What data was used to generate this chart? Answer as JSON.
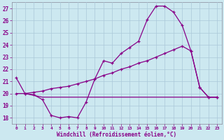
{
  "xlabel": "Windchill (Refroidissement éolien,°C)",
  "background_color": "#cce8f0",
  "grid_color": "#aac8d8",
  "line_color": "#880088",
  "xlim": [
    -0.5,
    23.5
  ],
  "ylim": [
    17.5,
    27.5
  ],
  "yticks": [
    18,
    19,
    20,
    21,
    22,
    23,
    24,
    25,
    26,
    27
  ],
  "xticks": [
    0,
    1,
    2,
    3,
    4,
    5,
    6,
    7,
    8,
    9,
    10,
    11,
    12,
    13,
    14,
    15,
    16,
    17,
    18,
    19,
    20,
    21,
    22,
    23
  ],
  "curve1_x": [
    0,
    1,
    2,
    3,
    4,
    5,
    6,
    7,
    8,
    9,
    10,
    11,
    12,
    13,
    14,
    15,
    16,
    17,
    18,
    19,
    20,
    21,
    22,
    23
  ],
  "curve1_y": [
    21.3,
    20.0,
    19.9,
    19.5,
    18.2,
    18.0,
    18.1,
    18.0,
    19.3,
    21.2,
    22.7,
    22.5,
    23.3,
    23.8,
    24.3,
    26.1,
    27.2,
    27.2,
    26.7,
    25.6,
    23.5,
    20.5,
    19.7,
    19.7
  ],
  "curve2_x": [
    0,
    1,
    2,
    3,
    4,
    5,
    6,
    7,
    8,
    9,
    10,
    11,
    12,
    13,
    14,
    15,
    16,
    17,
    18,
    19,
    20,
    21,
    22,
    23
  ],
  "curve2_y": [
    20.0,
    20.0,
    20.1,
    20.2,
    20.4,
    20.5,
    20.6,
    20.8,
    21.0,
    21.2,
    21.5,
    21.7,
    22.0,
    22.2,
    22.5,
    22.7,
    23.0,
    23.3,
    23.6,
    23.9,
    23.5,
    20.5,
    19.7,
    19.7
  ],
  "curve3_x": [
    1,
    3,
    10,
    18,
    20,
    21,
    22,
    23
  ],
  "curve3_y": [
    20.0,
    19.7,
    19.7,
    19.7,
    19.7,
    19.7,
    19.7,
    19.7
  ]
}
